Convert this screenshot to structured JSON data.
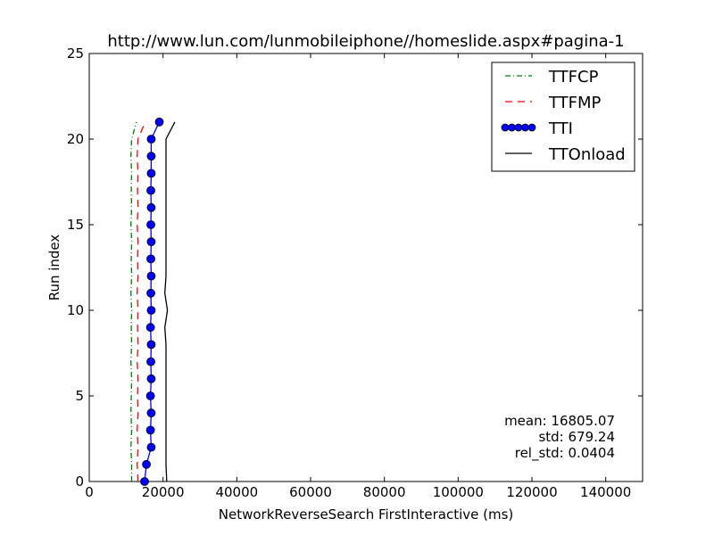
{
  "chart_data": {
    "type": "line",
    "title": "http://www.lun.com/lunmobileiphone//homeslide.aspx#pagina-1",
    "xlabel": "NetworkReverseSearch FirstInteractive (ms)",
    "ylabel": "Run index",
    "xlim": [
      0,
      150000
    ],
    "ylim": [
      0,
      25
    ],
    "x_ticks": [
      0,
      20000,
      40000,
      60000,
      80000,
      100000,
      120000,
      140000
    ],
    "y_ticks": [
      0,
      5,
      10,
      15,
      20,
      25
    ],
    "grid": false,
    "legend_position": "top-right",
    "series": [
      {
        "name": "TTFCP",
        "color": "#008000",
        "style": "dashdot",
        "marker": "none",
        "x": [
          11500,
          11500,
          11300,
          11500,
          11300,
          11400,
          11500,
          11300,
          11500,
          11400,
          11500,
          11300,
          11500,
          11400,
          11500,
          11300,
          11500,
          11400,
          11500,
          11300,
          11500,
          12800
        ],
        "y": [
          0,
          1,
          2,
          3,
          4,
          5,
          6,
          7,
          8,
          9,
          10,
          11,
          12,
          13,
          14,
          15,
          16,
          17,
          18,
          19,
          20,
          21
        ]
      },
      {
        "name": "TTFMP",
        "color": "#ff0000",
        "style": "dashed",
        "marker": "none",
        "x": [
          13200,
          13000,
          13200,
          13000,
          13200,
          13100,
          13200,
          13000,
          13200,
          13100,
          13200,
          13000,
          13200,
          13100,
          13200,
          13000,
          13200,
          13100,
          13200,
          13000,
          13200,
          15200
        ],
        "y": [
          0,
          1,
          2,
          3,
          4,
          5,
          6,
          7,
          8,
          9,
          10,
          11,
          12,
          13,
          14,
          15,
          16,
          17,
          18,
          19,
          20,
          21
        ]
      },
      {
        "name": "TTI",
        "color": "#0000ff",
        "style": "solid",
        "marker": "circle",
        "x": [
          15000,
          15500,
          16800,
          16600,
          16800,
          16600,
          16800,
          16700,
          16800,
          16600,
          16800,
          16700,
          16800,
          16700,
          16800,
          16700,
          16800,
          16700,
          16800,
          16800,
          16800,
          19000
        ],
        "y": [
          0,
          1,
          2,
          3,
          4,
          5,
          6,
          7,
          8,
          9,
          10,
          11,
          12,
          13,
          14,
          15,
          16,
          17,
          18,
          19,
          20,
          21
        ]
      },
      {
        "name": "TTOnload",
        "color": "#000000",
        "style": "solid",
        "marker": "none",
        "x": [
          21000,
          20800,
          20800,
          20800,
          20800,
          20800,
          20800,
          20800,
          20800,
          20500,
          21200,
          20500,
          20800,
          20800,
          20800,
          20800,
          20800,
          20800,
          20800,
          20800,
          20800,
          23200
        ],
        "y": [
          0,
          1,
          2,
          3,
          4,
          5,
          6,
          7,
          8,
          9,
          10,
          11,
          12,
          13,
          14,
          15,
          16,
          17,
          18,
          19,
          20,
          21
        ]
      }
    ],
    "annotations": [
      "mean: 16805.07",
      "std: 679.24",
      "rel_std: 0.0404"
    ]
  }
}
